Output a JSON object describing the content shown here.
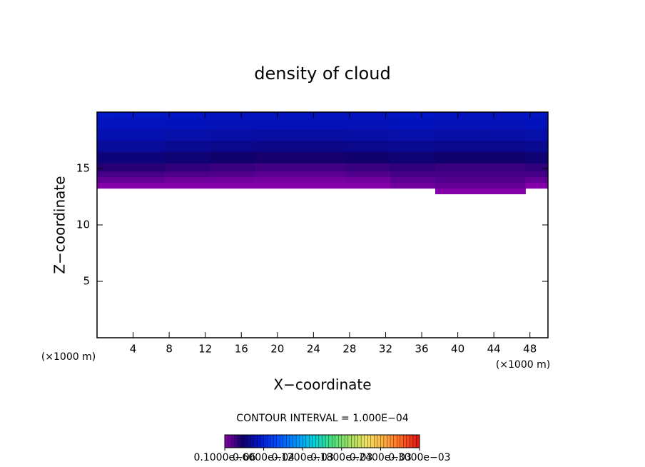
{
  "chart_data": {
    "type": "contour",
    "title": "density of cloud",
    "x_label": "X−coordinate",
    "y_label": "Z−coordinate",
    "x_unit_left": "(×1000 m)",
    "x_unit_right": "(×1000 m)",
    "contour_interval": "CONTOUR INTERVAL = 1.000E−04",
    "xlim": [
      0,
      50
    ],
    "ylim": [
      0,
      20
    ],
    "xticks": [
      4,
      8,
      12,
      16,
      20,
      24,
      28,
      32,
      36,
      40,
      44,
      48
    ],
    "yticks": [
      5,
      10,
      15
    ],
    "x": [
      0,
      5,
      10,
      15,
      20,
      25,
      30,
      35,
      40,
      45,
      50
    ],
    "z": [
      13,
      13.5,
      14,
      14.5,
      15,
      16,
      17,
      18,
      19,
      20
    ],
    "values": [
      [
        null,
        null,
        null,
        null,
        null,
        null,
        null,
        null,
        1e-06,
        1e-06,
        null
      ],
      [
        1e-06,
        1e-06,
        1e-06,
        1e-06,
        1e-06,
        1e-06,
        1e-06,
        5e-06,
        8e-06,
        8e-06,
        1e-06
      ],
      [
        8e-06,
        8e-06,
        6e-06,
        5e-06,
        4e-06,
        4e-06,
        5e-06,
        1e-05,
        1.2e-05,
        1.2e-05,
        8e-06
      ],
      [
        1.5e-05,
        1.5e-05,
        1.3e-05,
        1.2e-05,
        1e-05,
        1e-05,
        1.2e-05,
        1.5e-05,
        1.5e-05,
        1.5e-05,
        1.5e-05
      ],
      [
        2.2e-05,
        2.2e-05,
        2e-05,
        1.8e-05,
        1.6e-05,
        1.6e-05,
        1.8e-05,
        2e-05,
        1.8e-05,
        1.8e-05,
        2e-05
      ],
      [
        3.2e-05,
        3.2e-05,
        3e-05,
        2.8e-05,
        2.6e-05,
        2.6e-05,
        2.8e-05,
        3e-05,
        2.8e-05,
        2.8e-05,
        3e-05
      ],
      [
        4e-05,
        4e-05,
        3.8e-05,
        3.6e-05,
        3.5e-05,
        3.5e-05,
        3.6e-05,
        3.8e-05,
        3.6e-05,
        3.6e-05,
        3.8e-05
      ],
      [
        4.6e-05,
        4.6e-05,
        4.4e-05,
        4.3e-05,
        4.2e-05,
        4.2e-05,
        4.3e-05,
        4.4e-05,
        4.3e-05,
        4.3e-05,
        4.4e-05
      ],
      [
        5e-05,
        5e-05,
        4.9e-05,
        4.8e-05,
        4.8e-05,
        4.8e-05,
        4.8e-05,
        4.9e-05,
        4.8e-05,
        4.8e-05,
        4.9e-05
      ],
      [
        5.2e-05,
        5.2e-05,
        5.1e-05,
        5e-05,
        5e-05,
        5e-05,
        5e-05,
        5.1e-05,
        5e-05,
        5e-05,
        5.1e-05
      ]
    ],
    "clim": [
      0,
      0.0003
    ],
    "colormap": [
      "#8800aa",
      "#10006a",
      "#0018d0",
      "#0050ff",
      "#0090ff",
      "#00d0e0",
      "#40e080",
      "#a0e060",
      "#f0e060",
      "#ffb040",
      "#ff6020",
      "#e01010"
    ],
    "cticks": [
      {
        "value": 1e-07,
        "label": "0.1000e−06"
      },
      {
        "value": 6e-05,
        "label": "0.6000e−04"
      },
      {
        "value": 0.00012,
        "label": "0.1200e−03"
      },
      {
        "value": 0.00018,
        "label": "0.1800e−03"
      },
      {
        "value": 0.00024,
        "label": "0.2400e−03"
      },
      {
        "value": 0.0003,
        "label": "0.3000e−03"
      }
    ]
  }
}
